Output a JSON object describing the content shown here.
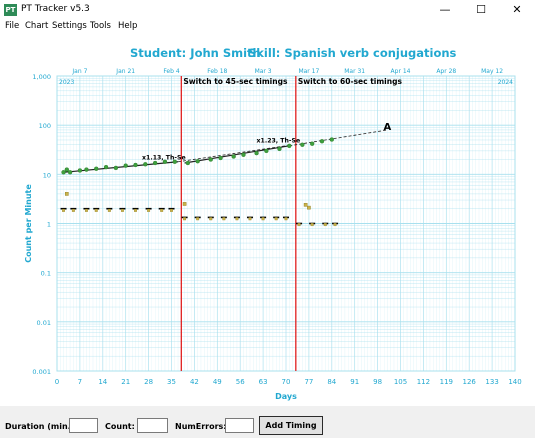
{
  "window": {
    "title": "PT Tracker v5.3",
    "icon_label": "PT",
    "minimize": "—",
    "maximize": "☐",
    "close": "✕"
  },
  "menu": [
    "File",
    "Chart",
    "Settings",
    "Tools",
    "Help"
  ],
  "chart_header": {
    "student": "Student: John Smith",
    "skill": "Skill: Spanish verb conjugations"
  },
  "chart_data": {
    "type": "scatter",
    "ylabel": "Count per Minute",
    "xlabel": "Days",
    "yscale": "log",
    "ylim": [
      0.001,
      1000
    ],
    "xlim": [
      0,
      140
    ],
    "x_ticks": [
      0,
      7,
      14,
      21,
      28,
      35,
      42,
      49,
      56,
      63,
      70,
      77,
      84,
      91,
      98,
      105,
      112,
      119,
      126,
      133,
      140
    ],
    "y_tick_labels": [
      "0.001",
      "0.01",
      "0.1",
      "1",
      "10",
      "100",
      "1,000"
    ],
    "top_date_labels": [
      "Jan 7",
      "Jan 21",
      "Feb 4",
      "Feb 18",
      "Mar 3",
      "Mar 17",
      "Mar 31",
      "Apr 14",
      "Apr 28",
      "May 12"
    ],
    "top_year_left": "2023",
    "top_year_right": "2024",
    "phase_changes": [
      {
        "day": 38,
        "label": "Switch to 45-sec timings"
      },
      {
        "day": 73,
        "label": "Switch to 60-sec timings"
      }
    ],
    "celeration_labels": [
      "x1.13, Th-Se",
      "x1.23, Th-Se"
    ],
    "aim_marker": "A",
    "colors": {
      "corrects": "#3d9e3d",
      "errors": "#c9b24a",
      "phase_line": "#e02020",
      "grid": "#a8e0ee",
      "axis_text": "#22a8d0",
      "trend": "#222222"
    },
    "corrects": [
      [
        2,
        11
      ],
      [
        3,
        12.5
      ],
      [
        4,
        11
      ],
      [
        7,
        12
      ],
      [
        9,
        12.5
      ],
      [
        12,
        13
      ],
      [
        15,
        14
      ],
      [
        18,
        13.5
      ],
      [
        21,
        15
      ],
      [
        24,
        15.5
      ],
      [
        27,
        16
      ],
      [
        30,
        17
      ],
      [
        33,
        18
      ],
      [
        36,
        18
      ],
      [
        40,
        17
      ],
      [
        43,
        18.5
      ],
      [
        47,
        20
      ],
      [
        50,
        21.5
      ],
      [
        54,
        23
      ],
      [
        57,
        25
      ],
      [
        61,
        27
      ],
      [
        64,
        30
      ],
      [
        68,
        33
      ],
      [
        71,
        38
      ],
      [
        75,
        40
      ],
      [
        78,
        42
      ],
      [
        81,
        47
      ],
      [
        84,
        51
      ]
    ],
    "errors": [
      [
        3,
        4
      ],
      [
        39,
        2.5
      ],
      [
        76,
        2.4
      ],
      [
        77,
        2.1
      ]
    ],
    "record_floors_phase1": [
      2,
      5,
      9,
      12,
      16,
      20,
      24,
      28,
      32,
      35
    ],
    "record_floors_phase2": [
      39,
      43,
      47,
      51,
      55,
      59,
      63,
      67,
      70
    ],
    "record_floors_phase3": [
      74,
      78,
      82,
      85
    ]
  },
  "form": {
    "duration_label": "Duration (min.):",
    "count_label": "Count:",
    "errors_label": "NumErrors:",
    "duration_value": "",
    "count_value": "",
    "errors_value": "",
    "add_button": "Add Timing"
  }
}
